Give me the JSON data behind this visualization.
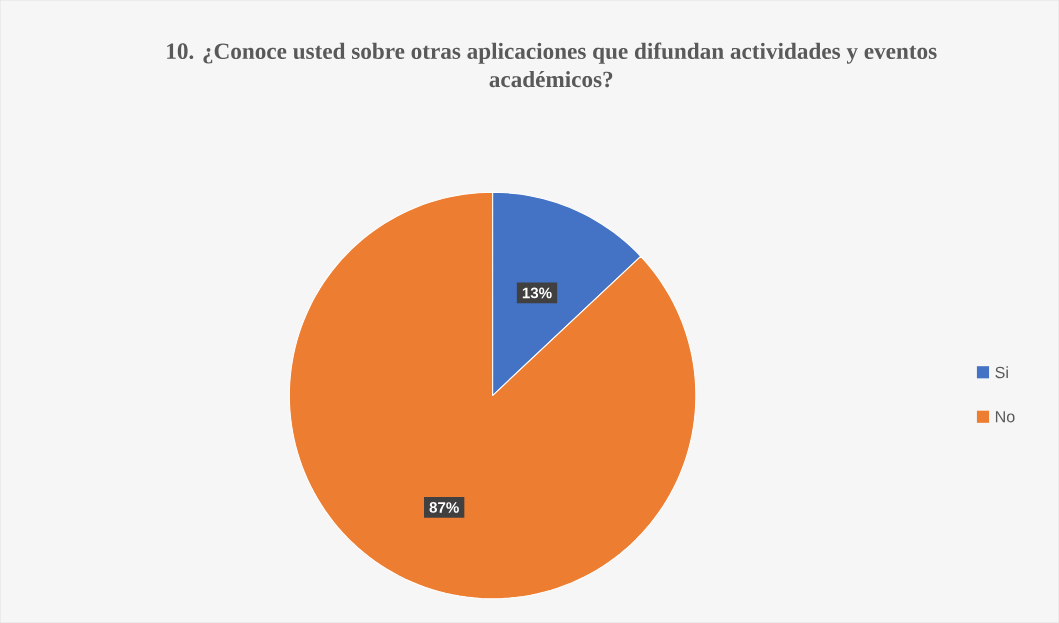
{
  "chart_data": {
    "type": "pie",
    "title": "10. ¿Conoce usted sobre otras aplicaciones que difundan actividades y eventos académicos?",
    "categories": [
      "Si",
      "No"
    ],
    "values": [
      13,
      87
    ],
    "colors": [
      "#4472c4",
      "#ed7d31"
    ],
    "value_labels": [
      "13%",
      "87%"
    ],
    "legend": "right"
  }
}
